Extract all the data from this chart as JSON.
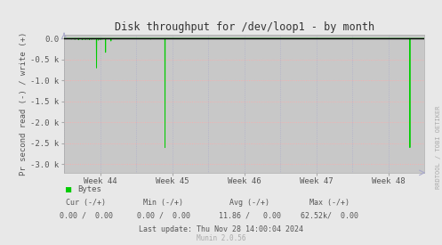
{
  "title": "Disk throughput for /dev/loop1 - by month",
  "ylabel": "Pr second read (-) / write (+)",
  "bg_color": "#e8e8e8",
  "plot_bg_color": "#c8c8c8",
  "grid_color_h": "#ffaaaa",
  "grid_color_v": "#aaaacc",
  "line_color": "#00cc00",
  "hline_color": "#000000",
  "top_border_color": "#000000",
  "ylim_min": -3200,
  "ylim_max": 100,
  "ytick_vals": [
    0,
    -500,
    -1000,
    -1500,
    -2000,
    -2500,
    -3000
  ],
  "ytick_labels": [
    "0.0",
    "-0.5 k",
    "-1.0 k",
    "-1.5 k",
    "-2.0 k",
    "-2.5 k",
    "-3.0 k"
  ],
  "week_labels": [
    "Week 44",
    "Week 45",
    "Week 46",
    "Week 47",
    "Week 48"
  ],
  "spike_x": [
    0.02,
    0.03,
    0.04,
    0.05,
    0.055,
    0.06,
    0.065,
    0.07,
    0.075,
    0.08,
    0.085,
    0.09,
    0.095,
    0.1,
    0.105,
    0.115,
    0.13,
    0.24,
    0.28,
    0.96
  ],
  "spike_y": [
    -15,
    -20,
    -30,
    -25,
    -18,
    -22,
    -16,
    -25,
    -20,
    -18,
    -15,
    -700,
    -40,
    -25,
    -20,
    -330,
    -60,
    -15,
    -2600,
    -2600
  ],
  "legend_label": "Bytes",
  "legend_color": "#00cc00",
  "cur_neg": "0.00",
  "cur_pos": "0.00",
  "min_neg": "0.00",
  "min_pos": "0.00",
  "avg_neg": "11.86",
  "avg_pos": "0.00",
  "max_neg": "62.52k",
  "max_pos": "0.00",
  "last_update": "Last update: Thu Nov 28 14:00:04 2024",
  "munin_version": "Munin 2.0.56",
  "rrdtool_label": "RRDTOOL / TOBI OETIKER",
  "tick_color": "#555555",
  "title_color": "#333333"
}
